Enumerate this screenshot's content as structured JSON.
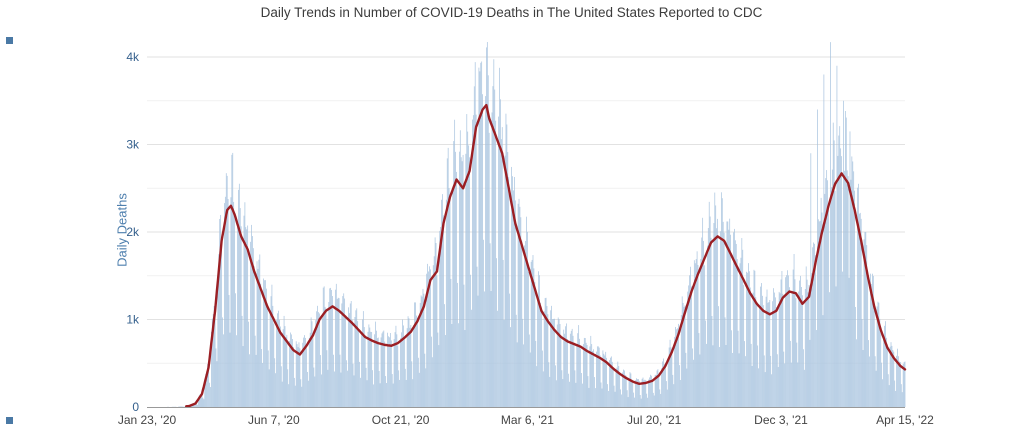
{
  "page": {
    "title": "Daily Trends in Number of COVID-19 Deaths in The United States Reported to CDC"
  },
  "chart_data": {
    "type": "bar",
    "title": "Daily Trends in Number of COVID-19 Deaths in The United States Reported to CDC",
    "xlabel": "",
    "ylabel": "Daily Deaths",
    "ylim": [
      0,
      4171
    ],
    "grid": true,
    "legend_position": "none",
    "x_range_days": [
      0,
      813
    ],
    "x_tick_labels": [
      "Jan 23, '20",
      "Jun 7, '20",
      "Oct 21, '20",
      "Mar 6, '21",
      "Jul 20, '21",
      "Dec 3, '21",
      "Apr 15, '22"
    ],
    "x_tick_days": [
      0,
      136,
      272,
      408,
      544,
      680,
      813
    ],
    "y_ticks": [
      0,
      1000,
      2000,
      3000,
      4000
    ],
    "y_tick_labels": [
      "0",
      "1k",
      "2k",
      "3k",
      "4k"
    ],
    "y_minor_ticks": [
      500,
      1500,
      2500,
      3500
    ],
    "series": [
      {
        "name": "Daily Deaths",
        "type": "bar",
        "color": "#a6c2de"
      },
      {
        "name": "7-Day Moving Average",
        "type": "line",
        "color": "#9b1f24"
      }
    ],
    "trend_anchors": {
      "day": [
        0,
        30,
        45,
        52,
        59,
        66,
        73,
        80,
        86,
        90,
        94,
        101,
        108,
        115,
        122,
        129,
        136,
        143,
        150,
        157,
        164,
        171,
        178,
        185,
        192,
        199,
        206,
        213,
        220,
        227,
        234,
        241,
        248,
        255,
        262,
        269,
        276,
        283,
        290,
        297,
        304,
        311,
        318,
        325,
        332,
        339,
        346,
        353,
        360,
        364,
        367,
        374,
        381,
        388,
        395,
        402,
        409,
        416,
        423,
        430,
        437,
        444,
        451,
        458,
        465,
        472,
        479,
        486,
        493,
        500,
        507,
        514,
        521,
        528,
        535,
        542,
        549,
        556,
        563,
        570,
        577,
        584,
        591,
        598,
        605,
        612,
        619,
        626,
        633,
        640,
        647,
        654,
        661,
        668,
        675,
        682,
        689,
        696,
        703,
        710,
        717,
        724,
        731,
        738,
        745,
        752,
        759,
        766,
        773,
        780,
        787,
        794,
        801,
        808,
        813
      ],
      "value": [
        1,
        2,
        10,
        40,
        150,
        450,
        1100,
        1900,
        2250,
        2300,
        2200,
        1950,
        1800,
        1550,
        1350,
        1150,
        1000,
        850,
        750,
        650,
        600,
        700,
        820,
        1000,
        1100,
        1150,
        1100,
        1030,
        960,
        880,
        800,
        760,
        730,
        710,
        700,
        730,
        790,
        860,
        980,
        1150,
        1450,
        1550,
        2100,
        2400,
        2600,
        2500,
        2700,
        3200,
        3400,
        3450,
        3300,
        3100,
        2900,
        2500,
        2100,
        1850,
        1600,
        1350,
        1100,
        980,
        880,
        800,
        750,
        720,
        690,
        640,
        600,
        560,
        510,
        440,
        380,
        330,
        290,
        265,
        275,
        300,
        360,
        470,
        630,
        830,
        1080,
        1320,
        1520,
        1700,
        1880,
        1950,
        1900,
        1750,
        1600,
        1450,
        1300,
        1180,
        1100,
        1060,
        1100,
        1250,
        1320,
        1300,
        1180,
        1260,
        1650,
        2000,
        2300,
        2550,
        2670,
        2560,
        2250,
        1900,
        1500,
        1150,
        880,
        680,
        560,
        470,
        430
      ]
    },
    "weekday_factors": [
      1.2,
      1.22,
      1.15,
      1.05,
      0.55,
      0.38,
      1.1
    ],
    "bar_jitter": 0.1,
    "bar_spikes": {
      "712": 2900,
      "719": 3400,
      "726": 3800,
      "733": 4170,
      "740": 3900,
      "747": 3500,
      "754": 3150
    },
    "line_start_day": 42,
    "axis_colors": {
      "y_tick": "#35608d",
      "x_tick": "#444444",
      "y_title": "#4e7fae",
      "grid_major": "#e2e2e2",
      "grid_minor": "#f1f1f1",
      "axis_line": "#999999"
    },
    "corner_marker_color": "#4a79a5"
  }
}
